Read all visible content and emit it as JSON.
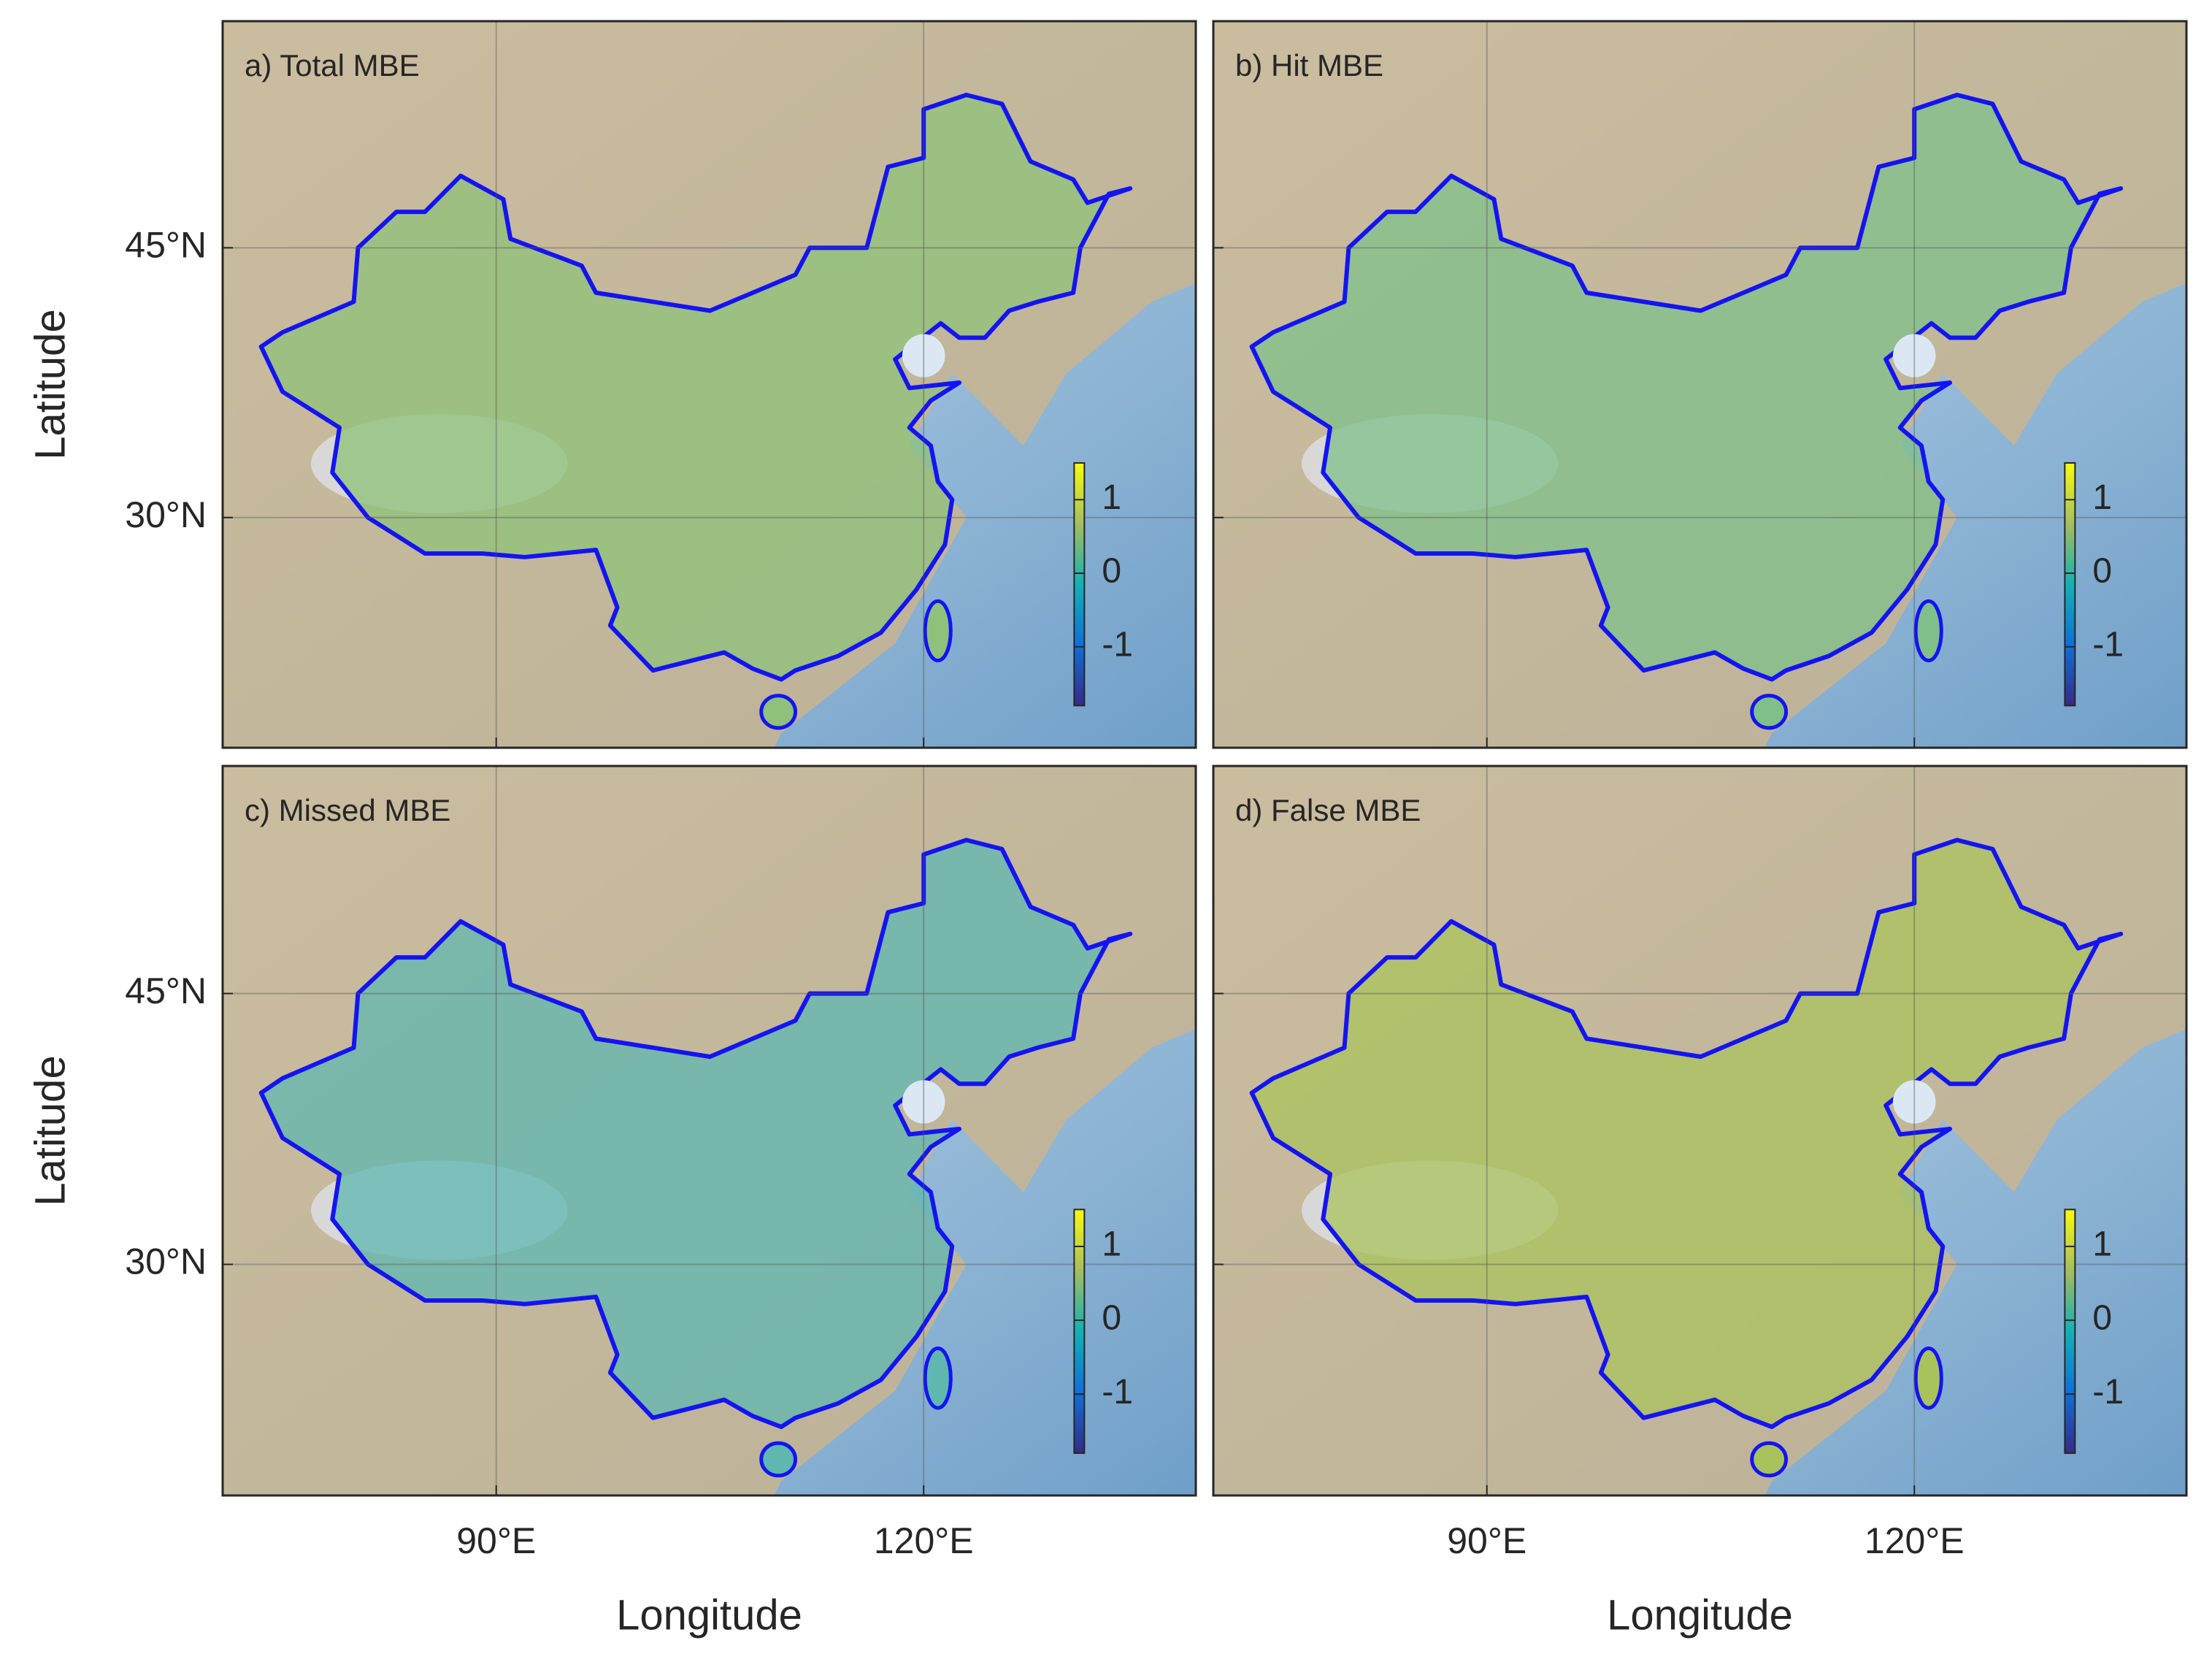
{
  "chart_data": [
    {
      "type": "map",
      "title": "a) Total MBE",
      "ylabel": "Latitude",
      "xlim": [
        70.8,
        139.1
      ],
      "ylim": [
        17.2,
        57.6
      ],
      "xticks": [
        {
          "value": 90,
          "label": "90°E"
        },
        {
          "value": 120,
          "label": "120°E"
        }
      ],
      "yticks": [
        {
          "value": 30,
          "label": "30°N"
        },
        {
          "value": 45,
          "label": "45°N"
        }
      ],
      "clim": [
        -1.8,
        1.5
      ],
      "cticks": [
        -1,
        0,
        1
      ],
      "grid": true
    },
    {
      "type": "map",
      "title": "b) Hit MBE",
      "xlim": [
        70.8,
        139.1
      ],
      "ylim": [
        17.2,
        57.6
      ],
      "xticks": [
        90,
        120
      ],
      "yticks": [
        30,
        45
      ],
      "clim": [
        -1.8,
        1.5
      ],
      "cticks": [
        -1,
        0,
        1
      ],
      "grid": true
    },
    {
      "type": "map",
      "title": "c) Missed MBE",
      "ylabel": "Latitude",
      "xlabel": "Longitude",
      "xlim": [
        70.8,
        139.1
      ],
      "ylim": [
        17.2,
        57.6
      ],
      "xticks": [
        {
          "value": 90,
          "label": "90°E"
        },
        {
          "value": 120,
          "label": "120°E"
        }
      ],
      "yticks": [
        {
          "value": 30,
          "label": "30°N"
        },
        {
          "value": 45,
          "label": "45°N"
        }
      ],
      "clim": [
        -1.8,
        1.5
      ],
      "cticks": [
        -1,
        0,
        1
      ],
      "grid": true
    },
    {
      "type": "map",
      "title": "d) False MBE",
      "xlabel": "Longitude",
      "xlim": [
        70.8,
        139.1
      ],
      "ylim": [
        17.2,
        57.6
      ],
      "xticks": [
        {
          "value": 90,
          "label": "90°E"
        },
        {
          "value": 120,
          "label": "120°E"
        }
      ],
      "yticks": [
        30,
        45
      ],
      "clim": [
        -1.8,
        1.5
      ],
      "cticks": [
        -1,
        0,
        1
      ],
      "grid": true
    }
  ]
}
